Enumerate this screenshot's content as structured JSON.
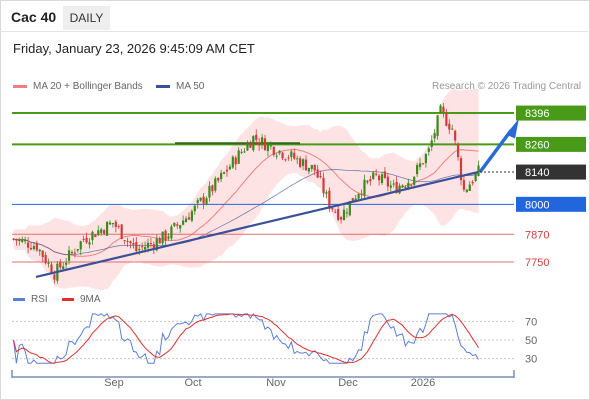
{
  "header": {
    "title": "Cac 40",
    "timeframe": "DAILY",
    "datetime": "Friday, January 23, 2026 9:45:09 AM CET"
  },
  "legend": {
    "ma20_label": "MA 20 + Bollinger Bands",
    "ma20_color": "#f08080",
    "ma50_label": "MA 50",
    "ma50_color": "#3a5199",
    "credit": "Research © 2026 Trading Central"
  },
  "rsi_legend": {
    "rsi_label": "RSI",
    "rsi_color": "#5b7fd6",
    "ma9_label": "9MA",
    "ma9_color": "#e03030"
  },
  "chart_data": [
    {
      "type": "candlestick",
      "ylim": [
        7650,
        8470
      ],
      "x_labels": [
        "Sep",
        "Oct",
        "Nov",
        "Dec",
        "2026"
      ],
      "levels": [
        {
          "value": 8396,
          "label": "8396",
          "style": "resistance",
          "color": "#4a9a1a"
        },
        {
          "value": 8260,
          "label": "8260",
          "style": "resistance",
          "color": "#4a9a1a"
        },
        {
          "value": 8140,
          "label": "8140",
          "style": "last",
          "color": "#333333"
        },
        {
          "value": 8000,
          "label": "8000",
          "style": "pivot",
          "color": "#2266dd"
        },
        {
          "value": 7870,
          "label": "7870",
          "style": "support",
          "color": "#e07070"
        },
        {
          "value": 7750,
          "label": "7750",
          "style": "support",
          "color": "#e07070"
        }
      ],
      "trendline": [
        [
          7685,
          8140
        ]
      ],
      "forecast_arrow": [
        8140,
        8390
      ],
      "series": [
        {
          "name": "MA 20 + Bollinger Bands"
        },
        {
          "name": "MA 50"
        }
      ]
    },
    {
      "type": "line",
      "ylim": [
        20,
        80
      ],
      "y_ticks": [
        70,
        50,
        30
      ],
      "series": [
        {
          "name": "RSI"
        },
        {
          "name": "9MA"
        }
      ]
    }
  ]
}
